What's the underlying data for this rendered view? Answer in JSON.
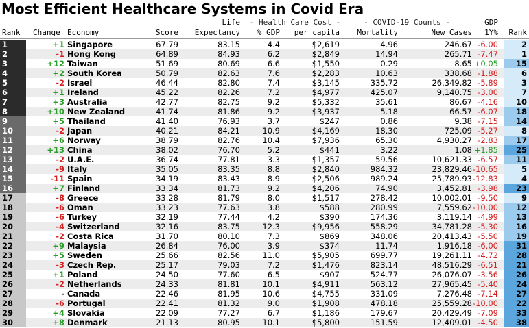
{
  "title": "Most Efficient Healthcare Systems in Covid Era",
  "headers": {
    "rank": "Rank",
    "change": "Change",
    "economy": "Economy",
    "score": "Score",
    "life_top": "Life",
    "life_bottom": "Expectancy",
    "hcc_top": "- Health Care Cost -",
    "hcc_gdp": "% GDP",
    "hcc_cap": "per capita",
    "covid_top": "- COVID-19  Counts -",
    "mortality": "Mortality",
    "new_cases": "New Cases",
    "gdp_top": "GDP",
    "gdp_bottom": "1Y%",
    "rank2": "Rank"
  },
  "colors": {
    "rank_dark": "#2b2b2b",
    "rank_mid": "#6a6a6a",
    "rank_light": "#c8c8c8",
    "positive": "#2a9d2a",
    "negative": "#d42020",
    "blue_dark": "#5aa6dd",
    "blue_mid": "#9ccbee",
    "blue_light": "#d6ebf9",
    "row_shade": "#ececec"
  },
  "chart_data": {
    "type": "table",
    "title": "Most Efficient Healthcare Systems in Covid Era",
    "columns": [
      "Rank",
      "Change",
      "Economy",
      "Score",
      "Life Expectancy",
      "Health Care Cost % GDP",
      "Health Care Cost per capita",
      "COVID-19 Mortality",
      "COVID-19 New Cases",
      "GDP 1Y%",
      "Rank"
    ],
    "rows": [
      {
        "rank": "1",
        "change": "+1",
        "economy": "Singapore",
        "score": "67.79",
        "life": "83.15",
        "gdp": "4.4",
        "cap": "$2,619",
        "mort": "4.96",
        "cases": "246.67",
        "gdp1y": "-6.00",
        "rank2": "2"
      },
      {
        "rank": "2",
        "change": "-1",
        "economy": "Hong Kong",
        "score": "64.89",
        "life": "84.93",
        "gdp": "6.2",
        "cap": "$2,849",
        "mort": "14.94",
        "cases": "265.71",
        "gdp1y": "-7.47",
        "rank2": "1"
      },
      {
        "rank": "3",
        "change": "+12",
        "economy": "Taiwan",
        "score": "51.69",
        "life": "80.69",
        "gdp": "6.6",
        "cap": "$1,550",
        "mort": "0.29",
        "cases": "8.65",
        "gdp1y": "+0.05",
        "rank2": "15"
      },
      {
        "rank": "4",
        "change": "+2",
        "economy": "South Korea",
        "score": "50.79",
        "life": "82.63",
        "gdp": "7.6",
        "cap": "$2,283",
        "mort": "10.63",
        "cases": "338.68",
        "gdp1y": "-1.88",
        "rank2": "6"
      },
      {
        "rank": "5",
        "change": "-2",
        "economy": "Israel",
        "score": "46.44",
        "life": "82.80",
        "gdp": "7.4",
        "cap": "$3,145",
        "mort": "335.72",
        "cases": "26,349.82",
        "gdp1y": "-5.89",
        "rank2": "3"
      },
      {
        "rank": "6",
        "change": "+1",
        "economy": "Ireland",
        "score": "45.22",
        "life": "82.26",
        "gdp": "7.2",
        "cap": "$4,977",
        "mort": "425.07",
        "cases": "9,140.75",
        "gdp1y": "-3.00",
        "rank2": "7"
      },
      {
        "rank": "7",
        "change": "+3",
        "economy": "Australia",
        "score": "42.77",
        "life": "82.75",
        "gdp": "9.2",
        "cap": "$5,332",
        "mort": "35.61",
        "cases": "86.67",
        "gdp1y": "-4.16",
        "rank2": "10"
      },
      {
        "rank": "8",
        "change": "+10",
        "economy": "New Zealand",
        "score": "41.74",
        "life": "81.86",
        "gdp": "9.2",
        "cap": "$3,937",
        "mort": "5.18",
        "cases": "66.57",
        "gdp1y": "-6.07",
        "rank2": "18"
      },
      {
        "rank": "9",
        "change": "+5",
        "economy": "Thailand",
        "score": "41.40",
        "life": "76.93",
        "gdp": "3.7",
        "cap": "$247",
        "mort": "0.86",
        "cases": "9.38",
        "gdp1y": "-7.15",
        "rank2": "14"
      },
      {
        "rank": "10",
        "change": "-2",
        "economy": "Japan",
        "score": "40.21",
        "life": "84.21",
        "gdp": "10.9",
        "cap": "$4,169",
        "mort": "18.30",
        "cases": "725.09",
        "gdp1y": "-5.27",
        "rank2": "8"
      },
      {
        "rank": "11",
        "change": "+6",
        "economy": "Norway",
        "score": "38.79",
        "life": "82.76",
        "gdp": "10.4",
        "cap": "$7,936",
        "mort": "65.30",
        "cases": "4,930.27",
        "gdp1y": "-2.83",
        "rank2": "17"
      },
      {
        "rank": "12",
        "change": "+13",
        "economy": "China",
        "score": "38.02",
        "life": "76.70",
        "gdp": "5.2",
        "cap": "$441",
        "mort": "3.22",
        "cases": "1.08",
        "gdp1y": "+1.85",
        "rank2": "25"
      },
      {
        "rank": "13",
        "change": "-2",
        "economy": "U.A.E.",
        "score": "36.74",
        "life": "77.81",
        "gdp": "3.3",
        "cap": "$1,357",
        "mort": "59.56",
        "cases": "10,621.33",
        "gdp1y": "-6.57",
        "rank2": "11"
      },
      {
        "rank": "14",
        "change": "-9",
        "economy": "Italy",
        "score": "35.05",
        "life": "83.35",
        "gdp": "8.8",
        "cap": "$2,840",
        "mort": "984.32",
        "cases": "23,829.46",
        "gdp1y": "-10.65",
        "rank2": "5"
      },
      {
        "rank": "15",
        "change": "-11",
        "economy": "Spain",
        "score": "34.19",
        "life": "83.43",
        "gdp": "8.9",
        "cap": "$2,506",
        "mort": "989.24",
        "cases": "25,789.93",
        "gdp1y": "-12.83",
        "rank2": "4"
      },
      {
        "rank": "16",
        "change": "+7",
        "economy": "Finland",
        "score": "33.34",
        "life": "81.73",
        "gdp": "9.2",
        "cap": "$4,206",
        "mort": "74.90",
        "cases": "3,452.81",
        "gdp1y": "-3.98",
        "rank2": "23"
      },
      {
        "rank": "17",
        "change": "-8",
        "economy": "Greece",
        "score": "33.28",
        "life": "81.79",
        "gdp": "8.0",
        "cap": "$1,517",
        "mort": "278.42",
        "cases": "10,002.01",
        "gdp1y": "-9.50",
        "rank2": "9"
      },
      {
        "rank": "18",
        "change": "-6",
        "economy": "Oman",
        "score": "33.23",
        "life": "77.63",
        "gdp": "3.8",
        "cap": "$588",
        "mort": "280.99",
        "cases": "7,559.62",
        "gdp1y": "-10.00",
        "rank2": "12"
      },
      {
        "rank": "19",
        "change": "-6",
        "economy": "Turkey",
        "score": "32.19",
        "life": "77.44",
        "gdp": "4.2",
        "cap": "$390",
        "mort": "174.36",
        "cases": "3,119.14",
        "gdp1y": "-4.99",
        "rank2": "13"
      },
      {
        "rank": "20",
        "change": "-4",
        "economy": "Switzerland",
        "score": "32.16",
        "life": "83.75",
        "gdp": "12.3",
        "cap": "$9,956",
        "mort": "558.29",
        "cases": "34,781.28",
        "gdp1y": "-5.30",
        "rank2": "16"
      },
      {
        "rank": "21",
        "change": "-2",
        "economy": "Costa Rica",
        "score": "31.70",
        "life": "80.10",
        "gdp": "7.3",
        "cap": "$869",
        "mort": "348.06",
        "cases": "20,413.43",
        "gdp1y": "-5.50",
        "rank2": "19"
      },
      {
        "rank": "22",
        "change": "+9",
        "economy": "Malaysia",
        "score": "26.84",
        "life": "76.00",
        "gdp": "3.9",
        "cap": "$374",
        "mort": "11.74",
        "cases": "1,916.18",
        "gdp1y": "-6.00",
        "rank2": "31"
      },
      {
        "rank": "23",
        "change": "+5",
        "economy": "Sweden",
        "score": "25.66",
        "life": "82.56",
        "gdp": "11.0",
        "cap": "$5,905",
        "mort": "699.77",
        "cases": "19,261.11",
        "gdp1y": "-4.72",
        "rank2": "28"
      },
      {
        "rank": "24",
        "change": "-3",
        "economy": "Czech Rep.",
        "score": "25.17",
        "life": "79.03",
        "gdp": "7.2",
        "cap": "$1,476",
        "mort": "823.14",
        "cases": "48,516.29",
        "gdp1y": "-6.51",
        "rank2": "21"
      },
      {
        "rank": "25",
        "change": "+1",
        "economy": "Poland",
        "score": "24.50",
        "life": "77.60",
        "gdp": "6.5",
        "cap": "$907",
        "mort": "524.77",
        "cases": "26,076.07",
        "gdp1y": "-3.56",
        "rank2": "26"
      },
      {
        "rank": "26",
        "change": "-2",
        "economy": "Netherlands",
        "score": "24.33",
        "life": "81.81",
        "gdp": "10.1",
        "cap": "$4,911",
        "mort": "563.12",
        "cases": "27,965.45",
        "gdp1y": "-5.40",
        "rank2": "24"
      },
      {
        "rank": "27",
        "change": "-",
        "economy": "Canada",
        "score": "22.46",
        "life": "81.95",
        "gdp": "10.6",
        "cap": "$4,755",
        "mort": "331.09",
        "cases": "7,276.48",
        "gdp1y": "-7.14",
        "rank2": "27"
      },
      {
        "rank": "28",
        "change": "-6",
        "economy": "Portugal",
        "score": "22.41",
        "life": "81.32",
        "gdp": "9.0",
        "cap": "$1,908",
        "mort": "478.18",
        "cases": "25,559.28",
        "gdp1y": "-10.00",
        "rank2": "22"
      },
      {
        "rank": "29",
        "change": "+4",
        "economy": "Slovakia",
        "score": "22.09",
        "life": "77.27",
        "gdp": "6.7",
        "cap": "$1,186",
        "mort": "179.67",
        "cases": "20,429.49",
        "gdp1y": "-7.09",
        "rank2": "33"
      },
      {
        "rank": "30",
        "change": "+8",
        "economy": "Denmark",
        "score": "21.13",
        "life": "80.95",
        "gdp": "10.1",
        "cap": "$5,800",
        "mort": "151.59",
        "cases": "12,409.01",
        "gdp1y": "-4.50",
        "rank2": "38"
      }
    ]
  }
}
